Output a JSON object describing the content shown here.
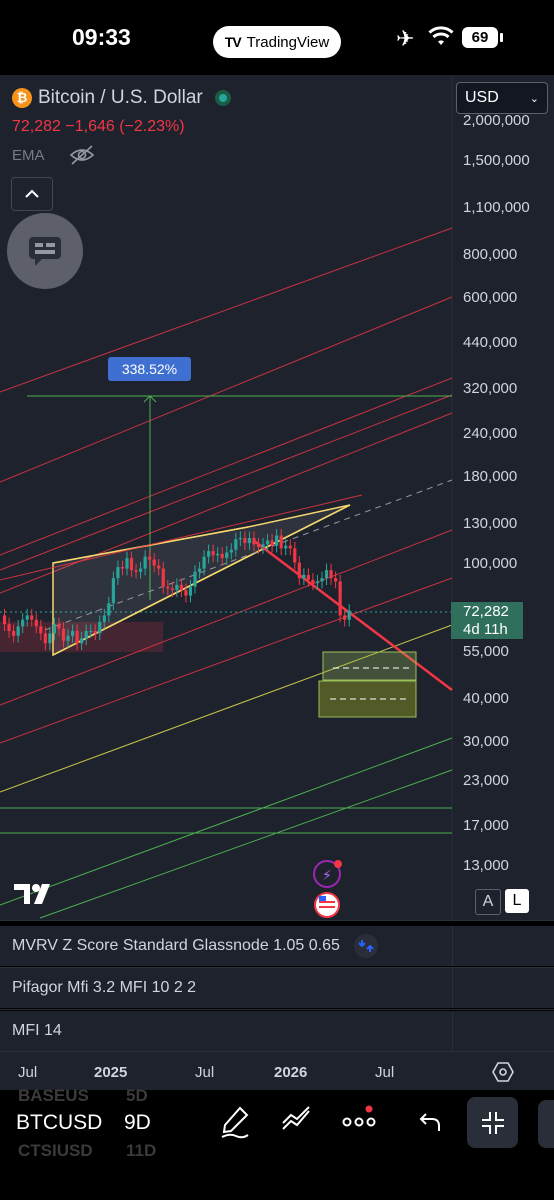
{
  "status_bar": {
    "time": "09:33",
    "app": "TradingView",
    "battery": "69"
  },
  "header": {
    "symbol_title": "Bitcoin / U.S. Dollar",
    "price_change": "72,282 −1,646 (−2.23%)",
    "indicator_label": "EMA"
  },
  "currency_select": "USD",
  "y_axis_ticks": [
    "2,000,000",
    "1,500,000",
    "1,100,000",
    "800,000",
    "600,000",
    "440,000",
    "320,000",
    "240,000",
    "180,000",
    "130,000",
    "100,000",
    "72,282",
    "55,000",
    "40,000",
    "30,000",
    "23,000",
    "17,000",
    "13,000"
  ],
  "price_tag": {
    "price": "72,282",
    "countdown": "4d 11h"
  },
  "measure_label": "338.52%",
  "scale_buttons": {
    "a": "A",
    "l": "L"
  },
  "indicators": [
    {
      "label": "MVRV Z Score Standard Glassnode 1.05 0.65"
    },
    {
      "label": "Pifagor Mfi 3.2 MFI 10 2 2"
    },
    {
      "label": "MFI 14"
    }
  ],
  "x_axis_ticks": [
    "Jul",
    "2025",
    "Jul",
    "2026",
    "Jul"
  ],
  "bottom_bar": {
    "symbol": "BTCUSD",
    "timeframe": "9D",
    "ghost_above": "BASEUS",
    "ghost_above_tf": "5D",
    "ghost_below": "CTSIUSD",
    "ghost_below_tf": "11D"
  },
  "colors": {
    "background": "#1e222d",
    "down": "#f23645",
    "up": "#26a69a",
    "accent": "#3f6fd1"
  },
  "chart_data": {
    "type": "candlestick",
    "title": "Bitcoin / U.S. Dollar",
    "interval": "9D",
    "scale": "log",
    "ylim": [
      11500,
      2150000
    ],
    "x_range": [
      "2024-04-01",
      "2026-09-15"
    ],
    "last_price": 72282,
    "change": -1646,
    "change_pct": -2.23,
    "series": [
      {
        "x": [
          "2024-04-10",
          "2024-04-19",
          "2024-04-28",
          "2024-05-07",
          "2024-05-16",
          "2024-05-25",
          "2024-06-03",
          "2024-06-12",
          "2024-06-21",
          "2024-06-30",
          "2024-07-09",
          "2024-07-18",
          "2024-07-27",
          "2024-08-05",
          "2024-08-14",
          "2024-08-23",
          "2024-09-01",
          "2024-09-10",
          "2024-09-19",
          "2024-09-28",
          "2024-10-07",
          "2024-10-16",
          "2024-10-25",
          "2024-11-03",
          "2024-11-12",
          "2024-11-21",
          "2024-11-30",
          "2024-12-09",
          "2024-12-18",
          "2024-12-27",
          "2025-01-05",
          "2025-01-14",
          "2025-01-23",
          "2025-02-01",
          "2025-02-10",
          "2025-02-19",
          "2025-02-28",
          "2025-03-09",
          "2025-03-18",
          "2025-03-27",
          "2025-04-05",
          "2025-04-14",
          "2025-04-23",
          "2025-05-02",
          "2025-05-11",
          "2025-05-20",
          "2025-05-29",
          "2025-06-07",
          "2025-06-16",
          "2025-06-25",
          "2025-07-04",
          "2025-07-13",
          "2025-07-22",
          "2025-07-31",
          "2025-08-09",
          "2025-08-18",
          "2025-08-27",
          "2025-09-05",
          "2025-09-14",
          "2025-09-23",
          "2025-10-02",
          "2025-10-11",
          "2025-10-20",
          "2025-10-29",
          "2025-11-07",
          "2025-11-16",
          "2025-11-25",
          "2025-12-04",
          "2025-12-13",
          "2025-12-22",
          "2025-12-31",
          "2026-01-09",
          "2026-01-18",
          "2026-01-27",
          "2026-02-05",
          "2026-02-14",
          "2026-02-23"
        ],
        "open": [
          70000,
          66000,
          63000,
          61000,
          65000,
          68000,
          70000,
          68000,
          65000,
          62000,
          58000,
          62000,
          66000,
          64000,
          59000,
          61000,
          63000,
          58000,
          60000,
          63000,
          63000,
          62000,
          67000,
          70000,
          76000,
          90000,
          97000,
          96000,
          103000,
          95000,
          94000,
          96000,
          104000,
          102000,
          98000,
          96000,
          85000,
          84000,
          83000,
          86000,
          83000,
          80000,
          85000,
          94000,
          96000,
          104000,
          108000,
          105000,
          106000,
          103000,
          107000,
          109000,
          117000,
          118000,
          114000,
          118000,
          113000,
          111000,
          113000,
          116000,
          112000,
          120000,
          110000,
          112000,
          110000,
          100000,
          90000,
          92000,
          89000,
          87000,
          88000,
          90000,
          95000,
          90000,
          88000,
          70000,
          68000
        ],
        "close": [
          66000,
          63000,
          61000,
          65000,
          68000,
          70000,
          68000,
          65000,
          62000,
          58000,
          62000,
          66000,
          64000,
          59000,
          61000,
          63000,
          58000,
          60000,
          63000,
          63000,
          62000,
          67000,
          70000,
          76000,
          90000,
          97000,
          96000,
          103000,
          95000,
          94000,
          96000,
          104000,
          102000,
          98000,
          96000,
          85000,
          84000,
          83000,
          86000,
          83000,
          80000,
          85000,
          94000,
          96000,
          104000,
          108000,
          105000,
          106000,
          103000,
          107000,
          109000,
          117000,
          118000,
          114000,
          118000,
          113000,
          111000,
          113000,
          116000,
          112000,
          120000,
          110000,
          112000,
          110000,
          100000,
          90000,
          92000,
          89000,
          87000,
          88000,
          90000,
          95000,
          90000,
          88000,
          70000,
          68000,
          72282
        ]
      }
    ],
    "annotations": [
      {
        "type": "measure",
        "label": "338.52%"
      },
      {
        "type": "rising_wedge",
        "color": "#f5d76e"
      },
      {
        "type": "descending_trendline",
        "color": "#f23645"
      },
      {
        "type": "parallel_channel_lines",
        "color": "#f23645"
      },
      {
        "type": "support_boxes",
        "color": "#9bbf5a"
      }
    ]
  }
}
